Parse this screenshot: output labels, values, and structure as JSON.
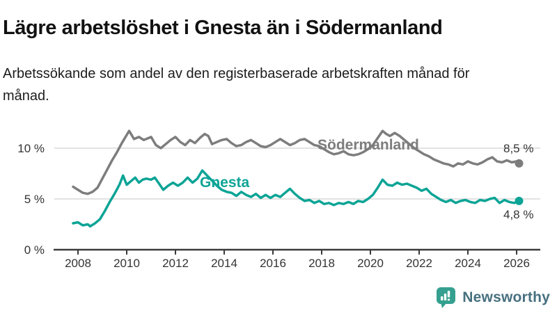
{
  "header": {
    "title": "Lägre arbetslöshet i Gnesta än i Södermanland",
    "subtitle": "Arbetssökande som andel av den registerbaserade arbetskraften månad för månad."
  },
  "footer": {
    "brand": "Newsworthy",
    "brand_text_color": "#47707f",
    "logo_icon": "bar-chart-speech-bubble-icon",
    "logo_color": "#35a08f"
  },
  "chart_data": {
    "type": "line",
    "title": "Lägre arbetslöshet i Gnesta än i Södermanland",
    "subtitle": "Arbetssökande som andel av den registerbaserade arbetskraften månad för månad.",
    "unit": "%",
    "grid": "horizontal-only",
    "legend_position": "inline-series-labels",
    "x_range": [
      2007.8,
      2026.9
    ],
    "ylim": [
      0,
      13
    ],
    "x_ticks": [
      2008,
      2010,
      2012,
      2014,
      2016,
      2018,
      2020,
      2022,
      2024,
      2026
    ],
    "y_ticks": [
      {
        "value": 0,
        "label": "0 %"
      },
      {
        "value": 5,
        "label": "5 %"
      },
      {
        "value": 10,
        "label": "10 %"
      }
    ],
    "colors": {
      "axis": "#3a3a3a",
      "gridline": "#d9d9d9",
      "tick_text": "#333333"
    },
    "series": [
      {
        "name": "Södermanland",
        "color": "#7d7d7d",
        "end_label": "8,5 %",
        "end_value": 8.5,
        "points": [
          [
            2007.8,
            6.2
          ],
          [
            2008.0,
            5.9
          ],
          [
            2008.2,
            5.6
          ],
          [
            2008.4,
            5.5
          ],
          [
            2008.6,
            5.7
          ],
          [
            2008.8,
            6.1
          ],
          [
            2009.0,
            7.0
          ],
          [
            2009.2,
            7.9
          ],
          [
            2009.4,
            8.8
          ],
          [
            2009.6,
            9.6
          ],
          [
            2009.8,
            10.5
          ],
          [
            2010.0,
            11.3
          ],
          [
            2010.1,
            11.7
          ],
          [
            2010.3,
            10.9
          ],
          [
            2010.5,
            11.1
          ],
          [
            2010.7,
            10.8
          ],
          [
            2010.9,
            11.0
          ],
          [
            2011.0,
            11.1
          ],
          [
            2011.2,
            10.3
          ],
          [
            2011.4,
            10.0
          ],
          [
            2011.6,
            10.4
          ],
          [
            2011.8,
            10.8
          ],
          [
            2012.0,
            11.1
          ],
          [
            2012.2,
            10.6
          ],
          [
            2012.4,
            10.3
          ],
          [
            2012.6,
            10.8
          ],
          [
            2012.8,
            10.5
          ],
          [
            2013.0,
            11.0
          ],
          [
            2013.2,
            11.4
          ],
          [
            2013.35,
            11.2
          ],
          [
            2013.5,
            10.4
          ],
          [
            2013.7,
            10.6
          ],
          [
            2013.9,
            10.8
          ],
          [
            2014.1,
            10.9
          ],
          [
            2014.3,
            10.5
          ],
          [
            2014.5,
            10.2
          ],
          [
            2014.7,
            10.3
          ],
          [
            2014.9,
            10.6
          ],
          [
            2015.1,
            10.8
          ],
          [
            2015.3,
            10.5
          ],
          [
            2015.5,
            10.2
          ],
          [
            2015.7,
            10.1
          ],
          [
            2015.9,
            10.3
          ],
          [
            2016.1,
            10.6
          ],
          [
            2016.3,
            10.9
          ],
          [
            2016.5,
            10.6
          ],
          [
            2016.7,
            10.3
          ],
          [
            2016.9,
            10.5
          ],
          [
            2017.1,
            10.8
          ],
          [
            2017.3,
            10.9
          ],
          [
            2017.5,
            10.6
          ],
          [
            2017.7,
            10.3
          ],
          [
            2017.9,
            10.2
          ],
          [
            2018.1,
            9.9
          ],
          [
            2018.3,
            9.6
          ],
          [
            2018.5,
            9.4
          ],
          [
            2018.7,
            9.5
          ],
          [
            2018.9,
            9.7
          ],
          [
            2019.1,
            9.4
          ],
          [
            2019.3,
            9.3
          ],
          [
            2019.5,
            9.4
          ],
          [
            2019.7,
            9.6
          ],
          [
            2019.9,
            9.9
          ],
          [
            2020.1,
            10.3
          ],
          [
            2020.3,
            11.0
          ],
          [
            2020.5,
            11.7
          ],
          [
            2020.65,
            11.4
          ],
          [
            2020.8,
            11.2
          ],
          [
            2021.0,
            11.5
          ],
          [
            2021.2,
            11.2
          ],
          [
            2021.4,
            10.8
          ],
          [
            2021.6,
            10.4
          ],
          [
            2021.8,
            10.0
          ],
          [
            2022.0,
            9.7
          ],
          [
            2022.2,
            9.4
          ],
          [
            2022.4,
            9.2
          ],
          [
            2022.6,
            8.9
          ],
          [
            2022.8,
            8.7
          ],
          [
            2023.0,
            8.5
          ],
          [
            2023.2,
            8.4
          ],
          [
            2023.4,
            8.2
          ],
          [
            2023.6,
            8.5
          ],
          [
            2023.8,
            8.4
          ],
          [
            2024.0,
            8.7
          ],
          [
            2024.2,
            8.5
          ],
          [
            2024.4,
            8.4
          ],
          [
            2024.6,
            8.6
          ],
          [
            2024.8,
            8.9
          ],
          [
            2025.0,
            9.1
          ],
          [
            2025.2,
            8.7
          ],
          [
            2025.4,
            8.6
          ],
          [
            2025.6,
            8.8
          ],
          [
            2025.8,
            8.6
          ],
          [
            2026.0,
            8.7
          ],
          [
            2026.1,
            8.5
          ]
        ]
      },
      {
        "name": "Gnesta",
        "color": "#0ca496",
        "end_label": "4,8 %",
        "end_value": 4.8,
        "points": [
          [
            2007.8,
            2.6
          ],
          [
            2008.0,
            2.7
          ],
          [
            2008.2,
            2.4
          ],
          [
            2008.4,
            2.5
          ],
          [
            2008.5,
            2.3
          ],
          [
            2008.7,
            2.6
          ],
          [
            2008.9,
            3.0
          ],
          [
            2009.1,
            3.8
          ],
          [
            2009.3,
            4.7
          ],
          [
            2009.5,
            5.5
          ],
          [
            2009.7,
            6.4
          ],
          [
            2009.85,
            7.3
          ],
          [
            2010.0,
            6.4
          ],
          [
            2010.2,
            6.8
          ],
          [
            2010.35,
            7.1
          ],
          [
            2010.5,
            6.6
          ],
          [
            2010.65,
            6.9
          ],
          [
            2010.8,
            7.0
          ],
          [
            2011.0,
            6.9
          ],
          [
            2011.15,
            7.1
          ],
          [
            2011.3,
            6.6
          ],
          [
            2011.5,
            5.9
          ],
          [
            2011.7,
            6.3
          ],
          [
            2011.9,
            6.6
          ],
          [
            2012.1,
            6.3
          ],
          [
            2012.3,
            6.6
          ],
          [
            2012.5,
            7.1
          ],
          [
            2012.7,
            6.6
          ],
          [
            2012.9,
            7.0
          ],
          [
            2013.1,
            7.8
          ],
          [
            2013.3,
            7.3
          ],
          [
            2013.5,
            6.8
          ],
          [
            2013.7,
            6.3
          ],
          [
            2013.9,
            5.9
          ],
          [
            2014.1,
            5.7
          ],
          [
            2014.3,
            5.6
          ],
          [
            2014.5,
            5.3
          ],
          [
            2014.7,
            5.7
          ],
          [
            2014.9,
            5.4
          ],
          [
            2015.1,
            5.2
          ],
          [
            2015.3,
            5.5
          ],
          [
            2015.5,
            5.1
          ],
          [
            2015.7,
            5.4
          ],
          [
            2015.9,
            5.1
          ],
          [
            2016.1,
            5.4
          ],
          [
            2016.3,
            5.2
          ],
          [
            2016.5,
            5.6
          ],
          [
            2016.7,
            6.0
          ],
          [
            2016.9,
            5.5
          ],
          [
            2017.1,
            5.1
          ],
          [
            2017.3,
            4.8
          ],
          [
            2017.5,
            4.9
          ],
          [
            2017.7,
            4.6
          ],
          [
            2017.9,
            4.8
          ],
          [
            2018.1,
            4.5
          ],
          [
            2018.3,
            4.6
          ],
          [
            2018.5,
            4.4
          ],
          [
            2018.7,
            4.6
          ],
          [
            2018.9,
            4.5
          ],
          [
            2019.1,
            4.7
          ],
          [
            2019.3,
            4.5
          ],
          [
            2019.5,
            4.8
          ],
          [
            2019.7,
            4.7
          ],
          [
            2019.9,
            5.0
          ],
          [
            2020.1,
            5.4
          ],
          [
            2020.3,
            6.1
          ],
          [
            2020.5,
            6.9
          ],
          [
            2020.7,
            6.4
          ],
          [
            2020.9,
            6.3
          ],
          [
            2021.1,
            6.6
          ],
          [
            2021.3,
            6.4
          ],
          [
            2021.5,
            6.5
          ],
          [
            2021.7,
            6.3
          ],
          [
            2021.9,
            6.1
          ],
          [
            2022.1,
            5.8
          ],
          [
            2022.3,
            6.0
          ],
          [
            2022.5,
            5.5
          ],
          [
            2022.7,
            5.2
          ],
          [
            2022.9,
            4.9
          ],
          [
            2023.1,
            4.7
          ],
          [
            2023.3,
            4.9
          ],
          [
            2023.5,
            4.6
          ],
          [
            2023.7,
            4.8
          ],
          [
            2023.9,
            4.9
          ],
          [
            2024.1,
            4.7
          ],
          [
            2024.3,
            4.6
          ],
          [
            2024.5,
            4.9
          ],
          [
            2024.7,
            4.8
          ],
          [
            2024.9,
            5.0
          ],
          [
            2025.1,
            5.1
          ],
          [
            2025.3,
            4.6
          ],
          [
            2025.5,
            4.9
          ],
          [
            2025.7,
            4.7
          ],
          [
            2025.9,
            4.6
          ],
          [
            2026.1,
            4.8
          ]
        ]
      }
    ]
  }
}
